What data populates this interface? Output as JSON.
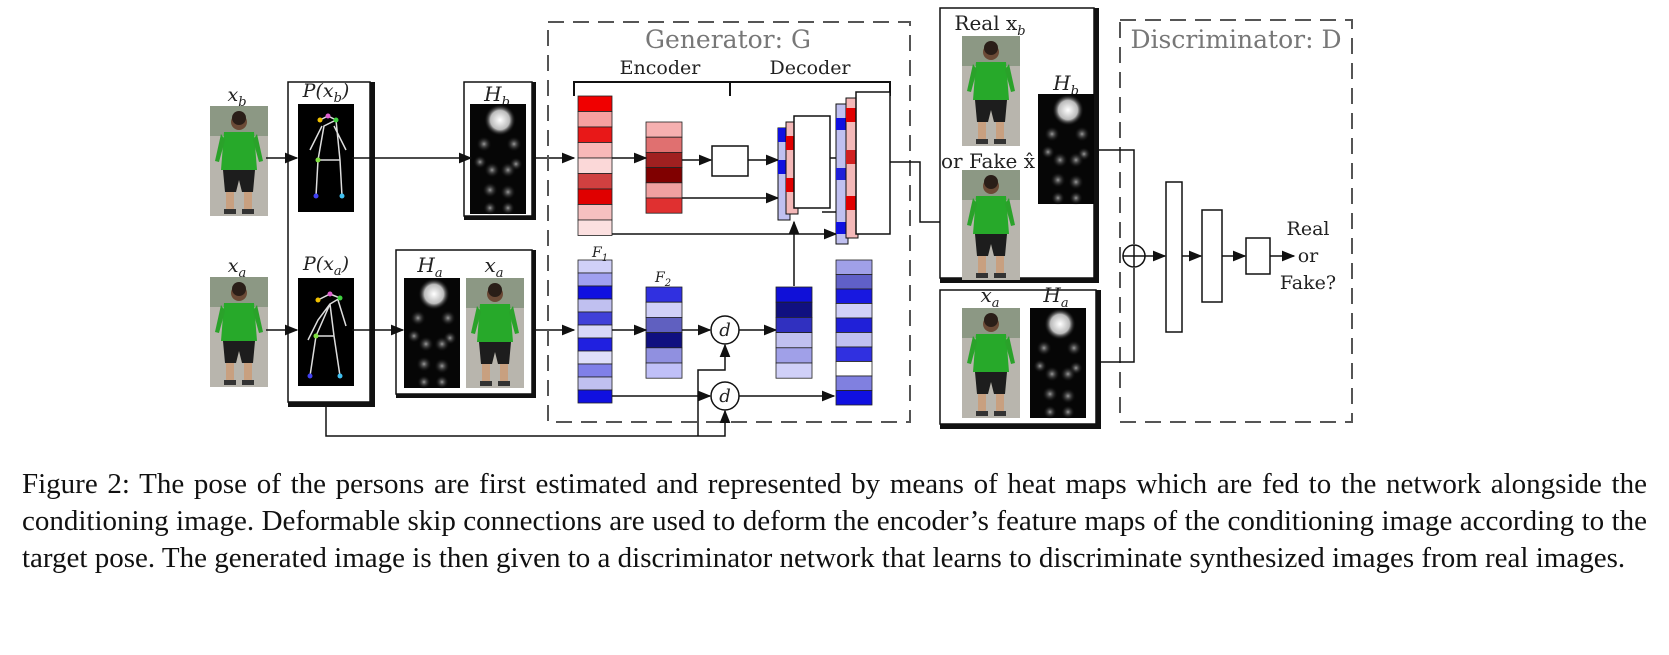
{
  "figure": {
    "labels": {
      "xb": "x",
      "xb_sub": "b",
      "xa": "x",
      "xa_sub": "a",
      "pxb": "P(x",
      "pxb_sub": "b",
      "pxb_close": ")",
      "pxa": "P(x",
      "pxa_sub": "a",
      "pxa_close": ")",
      "hb": "H",
      "hb_sub": "b",
      "ha": "H",
      "ha_sub": "a",
      "xa2": "x",
      "xa2_sub": "a",
      "generator": "Generator: G",
      "encoder": "Encoder",
      "decoder": "Decoder",
      "f1": "F",
      "f1_sub": "1",
      "f2": "F",
      "f2_sub": "2",
      "d": "d",
      "real_xb": "Real x",
      "real_xb_sub": "b",
      "hb_right": "H",
      "hb_right_sub": "b",
      "fake": "or Fake x̂",
      "xa_right": "x",
      "xa_right_sub": "a",
      "ha_right": "H",
      "ha_right_sub": "a",
      "discriminator": "Discriminator: D",
      "real": "Real",
      "or": "or",
      "fake_q": "Fake?"
    },
    "colors": {
      "encoder_red": [
        "#f00000",
        "#f6a0a0",
        "#e81818",
        "#f8b8b8",
        "#fbd8d8",
        "#d04040",
        "#e00000",
        "#f6c0c0",
        "#fce0e0"
      ],
      "encoder_blue": [
        "#d0d0f8",
        "#a0a0f0",
        "#1010e0",
        "#c0c0f0",
        "#4040d8",
        "#d8d8f8",
        "#2020e0",
        "#e0e0fa",
        "#8080e8",
        "#c0c0f0",
        "#1010e0"
      ],
      "f2_red": [
        "#f6b0b0",
        "#e07070",
        "#a02020",
        "#800000",
        "#f0a0a0",
        "#e03030"
      ],
      "f2_blue": [
        "#3030e0",
        "#d0d0f8",
        "#6060c0",
        "#101080",
        "#9090e0",
        "#c0c0f8"
      ],
      "dec_blue": [
        "#1010d8",
        "#101080",
        "#3030c0",
        "#c0c0f0",
        "#a0a0e8",
        "#d0d0f8"
      ],
      "final_blue": [
        "#a0a0e8",
        "#6060c8",
        "#1818e0",
        "#d0d0f8",
        "#2020d8",
        "#c0c0f0",
        "#3030e0",
        "#fff",
        "#8080e0",
        "#1010e0"
      ]
    }
  },
  "caption": "Figure 2: The pose of the persons are first estimated and represented by means of heat maps which are fed to the network alongside the conditioning image. Deformable skip connections are used to deform the encoder’s feature maps of the conditioning image according to the target pose. The generated image is then given to a discriminator network that learns to discriminate synthesized images from real images."
}
